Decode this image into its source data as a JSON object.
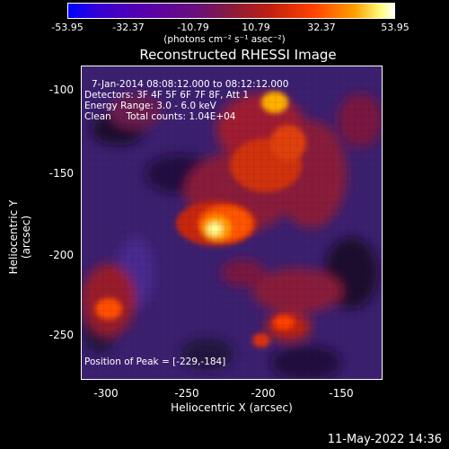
{
  "colorbar": {
    "ticks": [
      "-53.95",
      "-32.37",
      "-10.79",
      "10.79",
      "32.37",
      "53.95"
    ],
    "units": "(photons cm⁻² s⁻¹ asec⁻²)"
  },
  "title": "Reconstructed RHESSI Image",
  "annotations": {
    "time_range": "7-Jan-2014 08:08:12.000 to 08:12:12.000",
    "detectors": "Detectors: 3F 4F 5F 6F 7F 8F, Att 1",
    "energy": "Energy Range: 3.0 - 6.0 keV",
    "clean": "Clean     Total counts: 1.04E+04",
    "peak": "Position of Peak = [-229,-184]"
  },
  "axes": {
    "x_title": "Heliocentric X (arcsec)",
    "y_title": "Heliocentric Y (arcsec)",
    "x_ticks": [
      "-300",
      "-250",
      "-200",
      "-150"
    ],
    "y_ticks": [
      "-100",
      "-150",
      "-200",
      "-250"
    ]
  },
  "timestamp": "11-May-2022 14:36"
}
